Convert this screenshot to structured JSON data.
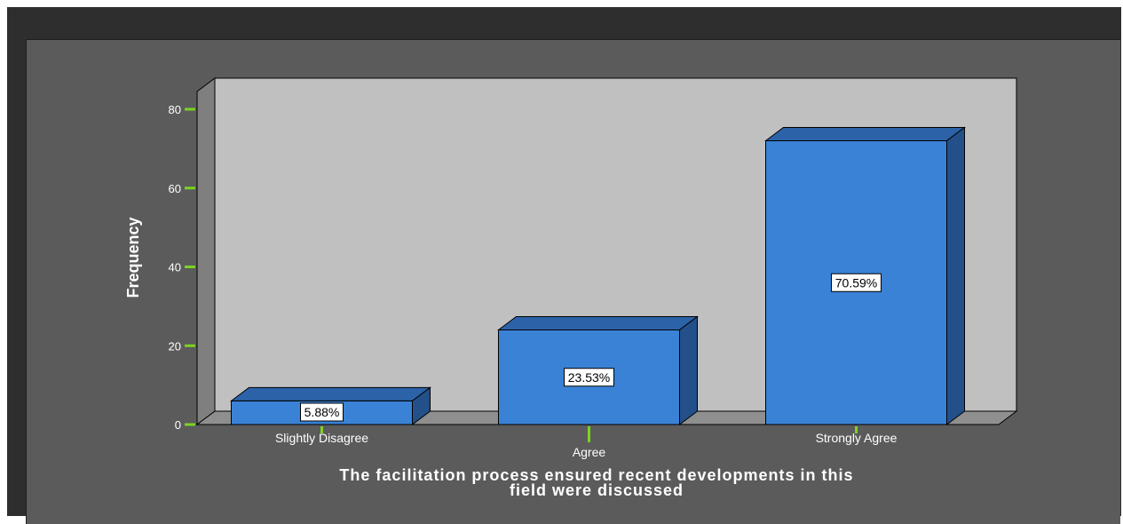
{
  "chart_data": {
    "type": "bar",
    "categories": [
      "Slightly Disagree",
      "Agree",
      "Strongly Agree"
    ],
    "values": [
      6,
      24,
      72
    ],
    "data_labels": [
      "5.88%",
      "23.53%",
      "70.59%"
    ],
    "title_lines": [
      "The facilitation process ensured recent developments  in this",
      "field were discussed"
    ],
    "xlabel": "",
    "ylabel": "Frequency",
    "ylim": [
      0,
      80
    ],
    "yticks": [
      "0",
      "20",
      "40",
      "60",
      "80"
    ],
    "grid": false,
    "style": "3d",
    "colors": {
      "bar_front": "#3a82d6",
      "bar_top": "#2c62a8",
      "bar_side": "#24508a",
      "plot_back": "#c0c0c0",
      "plot_floor": "#8f8f8f",
      "plot_wall": "#7f7f7f",
      "tick_mark": "#7dd321",
      "background": "#5b5b5b"
    }
  }
}
